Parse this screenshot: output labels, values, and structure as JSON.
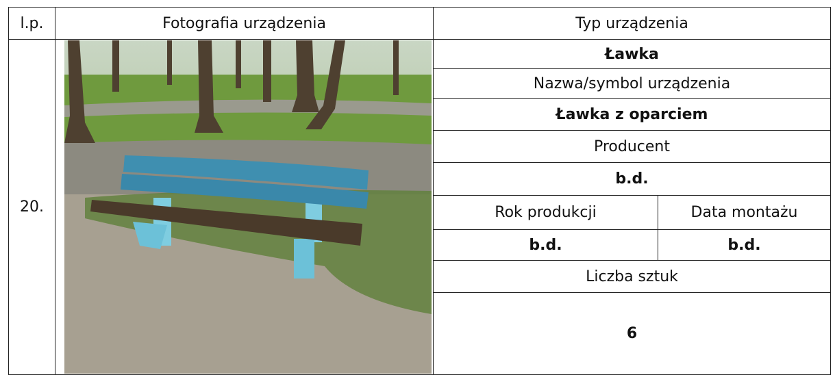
{
  "header": {
    "lp": "l.p.",
    "photo": "Fotografia urządzenia",
    "type": "Typ urządzenia"
  },
  "row": {
    "lp": "20.",
    "type": "Ławka",
    "name_label": "Nazwa/symbol urządzenia",
    "name": "Ławka z oparciem",
    "producer_label": "Producent",
    "producer": "b.d.",
    "year_label": "Rok produkcji",
    "install_label": "Data montażu",
    "year": "b.d.",
    "install": "b.d.",
    "count_label": "Liczba sztuk",
    "count": 6
  }
}
